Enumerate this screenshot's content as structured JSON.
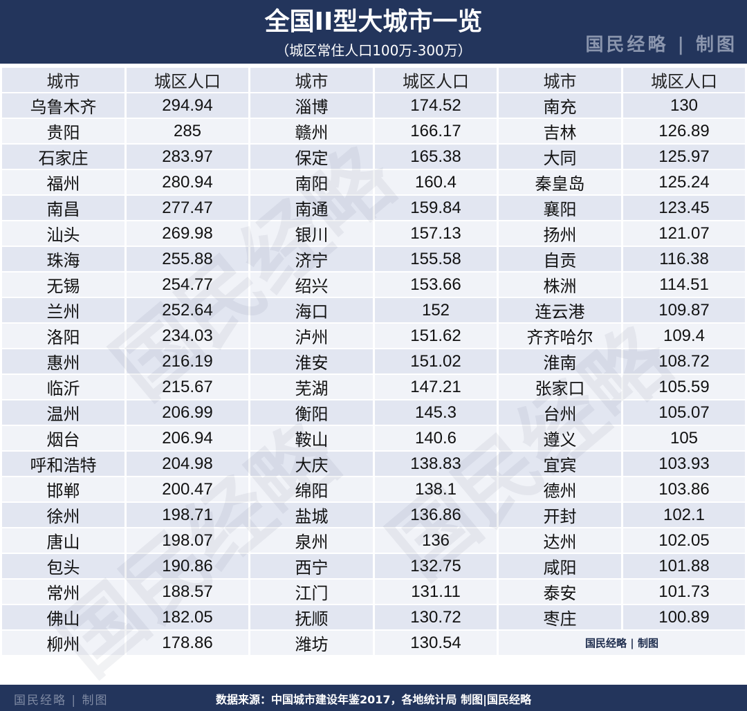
{
  "header": {
    "title": "全国II型大城市一览",
    "subtitle": "（城区常住人口100万-300万）",
    "brand": "国民经略 | 制图"
  },
  "table": {
    "headers": [
      "城市",
      "城区人口",
      "城市",
      "城区人口",
      "城市",
      "城区人口"
    ],
    "rows": [
      [
        "乌鲁木齐",
        "294.94",
        "淄博",
        "174.52",
        "南充",
        "130"
      ],
      [
        "贵阳",
        "285",
        "赣州",
        "166.17",
        "吉林",
        "126.89"
      ],
      [
        "石家庄",
        "283.97",
        "保定",
        "165.38",
        "大同",
        "125.97"
      ],
      [
        "福州",
        "280.94",
        "南阳",
        "160.4",
        "秦皇岛",
        "125.24"
      ],
      [
        "南昌",
        "277.47",
        "南通",
        "159.84",
        "襄阳",
        "123.45"
      ],
      [
        "汕头",
        "269.98",
        "银川",
        "157.13",
        "扬州",
        "121.07"
      ],
      [
        "珠海",
        "255.88",
        "济宁",
        "155.58",
        "自贡",
        "116.38"
      ],
      [
        "无锡",
        "254.77",
        "绍兴",
        "153.66",
        "株洲",
        "114.51"
      ],
      [
        "兰州",
        "252.64",
        "海口",
        "152",
        "连云港",
        "109.87"
      ],
      [
        "洛阳",
        "234.03",
        "泸州",
        "151.62",
        "齐齐哈尔",
        "109.4"
      ],
      [
        "惠州",
        "216.19",
        "淮安",
        "151.02",
        "淮南",
        "108.72"
      ],
      [
        "临沂",
        "215.67",
        "芜湖",
        "147.21",
        "张家口",
        "105.59"
      ],
      [
        "温州",
        "206.99",
        "衡阳",
        "145.3",
        "台州",
        "105.07"
      ],
      [
        "烟台",
        "206.94",
        "鞍山",
        "140.6",
        "遵义",
        "105"
      ],
      [
        "呼和浩特",
        "204.98",
        "大庆",
        "138.83",
        "宜宾",
        "103.93"
      ],
      [
        "邯郸",
        "200.47",
        "绵阳",
        "138.1",
        "德州",
        "103.86"
      ],
      [
        "徐州",
        "198.71",
        "盐城",
        "136.86",
        "开封",
        "102.1"
      ],
      [
        "唐山",
        "198.07",
        "泉州",
        "136",
        "达州",
        "102.05"
      ],
      [
        "包头",
        "190.86",
        "西宁",
        "132.75",
        "咸阳",
        "101.88"
      ],
      [
        "常州",
        "188.57",
        "江门",
        "131.11",
        "泰安",
        "101.73"
      ],
      [
        "佛山",
        "182.05",
        "抚顺",
        "130.72",
        "枣庄",
        "100.89"
      ],
      [
        "柳州",
        "178.86",
        "潍坊",
        "130.54"
      ]
    ],
    "last_row_credit": "国民经略 | 制图"
  },
  "footer": {
    "brand": "国民经略 | 制图",
    "source": "数据来源：中国城市建设年鉴2017，各地统计局 制图|国民经略"
  },
  "watermark": "国民经略",
  "colors": {
    "navy": "#23355c",
    "row_dark": "#e2e6f1",
    "row_light": "#f1f3f8"
  }
}
